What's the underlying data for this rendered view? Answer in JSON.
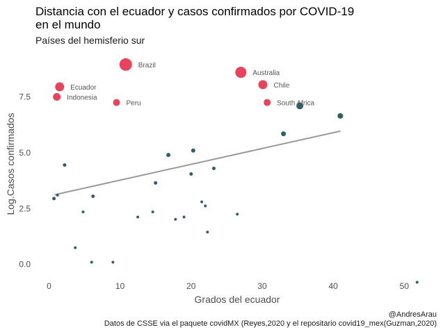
{
  "chart_data": {
    "type": "scatter",
    "title_lines": [
      "Distancia con el ecuador y casos confirmados por COVID-19",
      "en el mundo"
    ],
    "subtitle": "Países del hemisferio sur",
    "xlabel": "Grados del ecuador",
    "ylabel": "Log.Casos confirmados",
    "xlim": [
      -2,
      53
    ],
    "ylim": [
      -0.6,
      9.6
    ],
    "x_ticks": [
      0,
      10,
      20,
      30,
      40,
      50
    ],
    "x_tick_labels": [
      "0",
      "10",
      "20",
      "30",
      "40",
      "50"
    ],
    "y_ticks": [
      0.0,
      2.5,
      5.0,
      7.5
    ],
    "y_tick_labels": [
      "0.0",
      "2.5",
      "5.0",
      "7.5"
    ],
    "grid": false,
    "highlight_color": "#e8435a",
    "base_color": "#2f5f6b",
    "trend_color": "#999999",
    "trend_line": {
      "x": [
        0.8,
        41
      ],
      "y": [
        3.12,
        5.97
      ]
    },
    "points": [
      {
        "x": 10.8,
        "y": 8.95,
        "size": 9.0,
        "highlight": true,
        "label": "Brazil"
      },
      {
        "x": 27.0,
        "y": 8.6,
        "size": 8.0,
        "highlight": true,
        "label": "Australia"
      },
      {
        "x": 1.5,
        "y": 7.95,
        "size": 6.5,
        "highlight": true,
        "label": "Ecuador"
      },
      {
        "x": 1.1,
        "y": 7.5,
        "size": 5.5,
        "highlight": true,
        "label": "Indonesia"
      },
      {
        "x": 9.5,
        "y": 7.25,
        "size": 5.0,
        "highlight": true,
        "label": "Peru"
      },
      {
        "x": 30.1,
        "y": 8.05,
        "size": 6.5,
        "highlight": true,
        "label": "Chile"
      },
      {
        "x": 30.7,
        "y": 7.25,
        "size": 5.0,
        "highlight": true,
        "label": "South Africa"
      },
      {
        "x": 35.3,
        "y": 7.1,
        "size": 5.0,
        "highlight": false
      },
      {
        "x": 41.0,
        "y": 6.65,
        "size": 4.0,
        "highlight": false
      },
      {
        "x": 33.0,
        "y": 5.85,
        "size": 3.5,
        "highlight": false
      },
      {
        "x": 20.3,
        "y": 5.1,
        "size": 3.0,
        "highlight": false
      },
      {
        "x": 16.8,
        "y": 4.9,
        "size": 3.0,
        "highlight": false
      },
      {
        "x": 2.2,
        "y": 4.45,
        "size": 2.5,
        "highlight": false
      },
      {
        "x": 23.2,
        "y": 4.3,
        "size": 2.5,
        "highlight": false
      },
      {
        "x": 20.0,
        "y": 4.05,
        "size": 2.5,
        "highlight": false
      },
      {
        "x": 15.0,
        "y": 3.65,
        "size": 2.5,
        "highlight": false
      },
      {
        "x": 1.2,
        "y": 3.1,
        "size": 2.0,
        "highlight": false
      },
      {
        "x": 6.2,
        "y": 3.05,
        "size": 2.5,
        "highlight": false
      },
      {
        "x": 0.7,
        "y": 2.95,
        "size": 2.5,
        "highlight": false
      },
      {
        "x": 21.5,
        "y": 2.8,
        "size": 2.0,
        "highlight": false
      },
      {
        "x": 22.0,
        "y": 2.62,
        "size": 2.0,
        "highlight": false
      },
      {
        "x": 4.8,
        "y": 2.35,
        "size": 2.0,
        "highlight": false
      },
      {
        "x": 14.6,
        "y": 2.35,
        "size": 2.0,
        "highlight": false
      },
      {
        "x": 26.5,
        "y": 2.25,
        "size": 2.0,
        "highlight": false
      },
      {
        "x": 12.5,
        "y": 2.12,
        "size": 2.0,
        "highlight": false
      },
      {
        "x": 19.0,
        "y": 2.12,
        "size": 2.0,
        "highlight": false
      },
      {
        "x": 17.8,
        "y": 2.02,
        "size": 2.0,
        "highlight": false
      },
      {
        "x": 22.3,
        "y": 1.45,
        "size": 2.0,
        "highlight": false
      },
      {
        "x": 3.7,
        "y": 0.75,
        "size": 2.0,
        "highlight": false
      },
      {
        "x": 6.0,
        "y": 0.1,
        "size": 2.0,
        "highlight": false
      },
      {
        "x": 9.0,
        "y": 0.1,
        "size": 2.0,
        "highlight": false
      },
      {
        "x": 51.8,
        "y": -0.8,
        "size": 2.0,
        "highlight": false
      }
    ]
  },
  "caption": {
    "author": "@AndresArau",
    "source": "Datos de CSSE via el paquete covidMX (Reyes,2020 y el repositario covid19_mex(Guzman,2020)"
  }
}
